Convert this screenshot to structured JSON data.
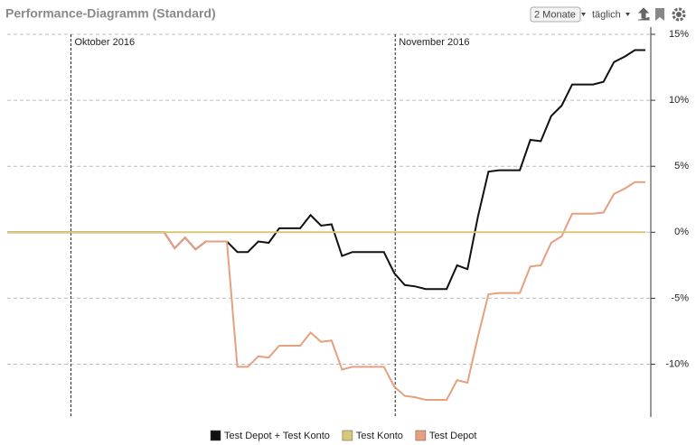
{
  "chart_data": {
    "type": "line",
    "title": "Performance-Diagramm (Standard)",
    "controls": {
      "range": "2 Monate",
      "interval": "täglich"
    },
    "categories": [
      null,
      null,
      null,
      null,
      null,
      null,
      "Oktober 2016",
      null,
      null,
      null,
      null,
      null,
      null,
      null,
      null,
      null,
      null,
      null,
      null,
      null,
      null,
      null,
      null,
      null,
      null,
      null,
      null,
      null,
      null,
      null,
      null,
      null,
      null,
      null,
      null,
      null,
      null,
      "November 2016",
      null,
      null,
      null,
      null,
      null,
      null,
      null,
      null,
      null,
      null,
      null,
      null,
      null,
      null,
      null,
      null,
      null,
      null,
      null,
      null,
      null,
      null,
      null,
      null
    ],
    "series": [
      {
        "name": "Test Depot + Test Konto",
        "color": "#111111",
        "values": [
          0,
          0,
          0,
          0,
          0,
          0,
          0,
          0,
          0,
          0,
          0,
          0,
          0,
          0,
          0,
          0,
          -1.2,
          -0.4,
          -1.3,
          -0.7,
          -0.7,
          -0.7,
          -1.5,
          -1.5,
          -0.7,
          -0.8,
          0.3,
          0.3,
          0.3,
          1.3,
          0.5,
          0.6,
          -1.8,
          -1.5,
          -1.5,
          -1.5,
          -1.5,
          -3.1,
          -4.0,
          -4.1,
          -4.3,
          -4.3,
          -4.3,
          -2.5,
          -2.8,
          1.2,
          4.6,
          4.7,
          4.7,
          4.7,
          7.0,
          6.9,
          8.8,
          9.6,
          11.2,
          11.2,
          11.2,
          11.4,
          12.9,
          13.3,
          13.8,
          13.8
        ]
      },
      {
        "name": "Test Konto",
        "color": "#d9c77a",
        "values": [
          0,
          0,
          0,
          0,
          0,
          0,
          0,
          0,
          0,
          0,
          0,
          0,
          0,
          0,
          0,
          0,
          0,
          0,
          0,
          0,
          0,
          0,
          0,
          0,
          0,
          0,
          0,
          0,
          0,
          0,
          0,
          0,
          0,
          0,
          0,
          0,
          0,
          0,
          0,
          0,
          0,
          0,
          0,
          0,
          0,
          0,
          0,
          0,
          0,
          0,
          0,
          0,
          0,
          0,
          0,
          0,
          0,
          0,
          0,
          0,
          0,
          0
        ]
      },
      {
        "name": "Test Depot",
        "color": "#e6a07f",
        "values": [
          0,
          0,
          0,
          0,
          0,
          0,
          0,
          0,
          0,
          0,
          0,
          0,
          0,
          0,
          0,
          0,
          -1.2,
          -0.4,
          -1.3,
          -0.7,
          -0.7,
          -0.7,
          -10.2,
          -10.2,
          -9.4,
          -9.5,
          -8.6,
          -8.6,
          -8.6,
          -7.6,
          -8.3,
          -8.2,
          -10.4,
          -10.2,
          -10.2,
          -10.2,
          -10.2,
          -11.7,
          -12.4,
          -12.5,
          -12.7,
          -12.7,
          -12.7,
          -11.2,
          -11.4,
          -7.9,
          -4.7,
          -4.6,
          -4.6,
          -4.6,
          -2.6,
          -2.5,
          -0.8,
          -0.3,
          1.4,
          1.4,
          1.4,
          1.5,
          2.9,
          3.3,
          3.8,
          3.8
        ]
      }
    ],
    "ylim": [
      -14,
      15
    ],
    "yticks": [
      {
        "value": -10,
        "label": "-10%"
      },
      {
        "value": -5,
        "label": "-5%"
      },
      {
        "value": 0,
        "label": "0%"
      },
      {
        "value": 5,
        "label": "5%"
      },
      {
        "value": 10,
        "label": "10%"
      },
      {
        "value": 15,
        "label": "15%"
      }
    ],
    "grid": true
  }
}
